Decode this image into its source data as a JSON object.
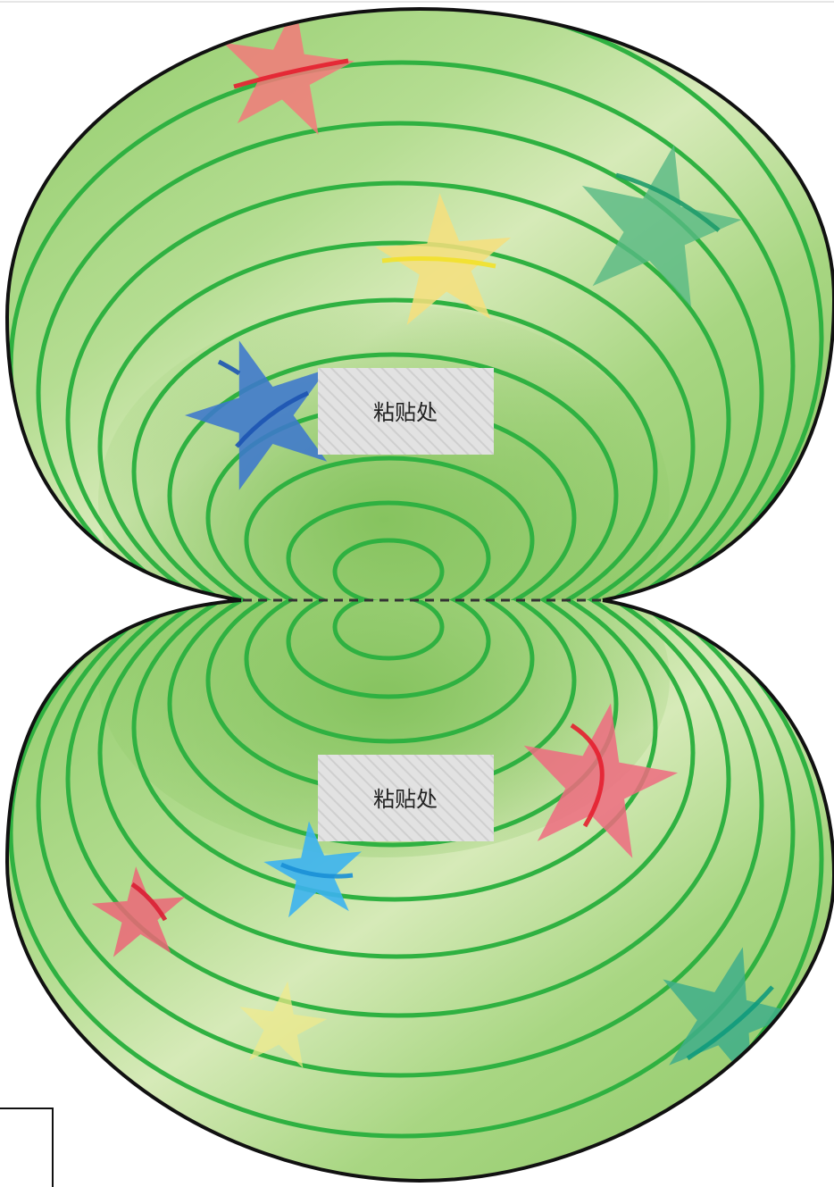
{
  "diagram": {
    "colors": {
      "surface": "#9fd37b",
      "surface_light": "#d3e8b4",
      "surface_dark": "#88c462",
      "contour": "#2fb141",
      "outline": "#111111",
      "fold_line": "#333333",
      "paste_fill": "#e1e1e1",
      "paste_stripe": "#d0d0d0"
    },
    "paste_labels": [
      {
        "text": "粘贴处"
      },
      {
        "text": "粘贴处"
      }
    ],
    "stars": [
      {
        "color": "#f27a7a",
        "icon": "star-icon"
      },
      {
        "color": "#f6df7c",
        "icon": "star-icon"
      },
      {
        "color": "#57b985",
        "icon": "star-icon"
      },
      {
        "color": "#3d77cd",
        "icon": "star-icon"
      },
      {
        "color": "#ef6b80",
        "icon": "star-icon"
      },
      {
        "color": "#3cb3ef",
        "icon": "star-icon"
      },
      {
        "color": "#ec6678",
        "icon": "star-icon"
      },
      {
        "color": "#f1ea8a",
        "icon": "star-icon"
      },
      {
        "color": "#3fae8a",
        "icon": "star-icon"
      }
    ]
  }
}
